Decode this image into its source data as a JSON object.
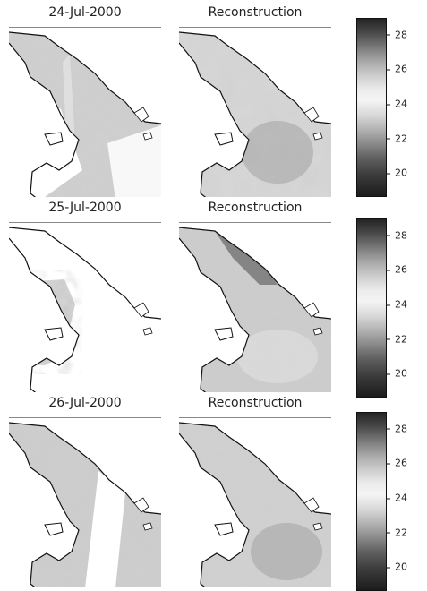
{
  "rows": [
    {
      "date_title": "24-Jul-2000",
      "recon_title": "Reconstruction",
      "observed_coverage": "partial",
      "colorbar_ticks": [
        "28",
        "26",
        "24",
        "22",
        "20"
      ]
    },
    {
      "date_title": "25-Jul-2000",
      "recon_title": "Reconstruction",
      "observed_coverage": "sparse",
      "colorbar_ticks": [
        "28",
        "26",
        "24",
        "22",
        "20"
      ]
    },
    {
      "date_title": "26-Jul-2000",
      "recon_title": "Reconstruction",
      "observed_coverage": "partial",
      "colorbar_ticks": [
        "28",
        "26",
        "24",
        "22",
        "20"
      ]
    }
  ],
  "colorbar_range": [
    19,
    29.3
  ],
  "colors": {
    "land_outline": "#111111",
    "sea_light": "#e2e2e2",
    "sea_mid": "#c6c6c6",
    "sea_dark": "#9a9a9a"
  }
}
